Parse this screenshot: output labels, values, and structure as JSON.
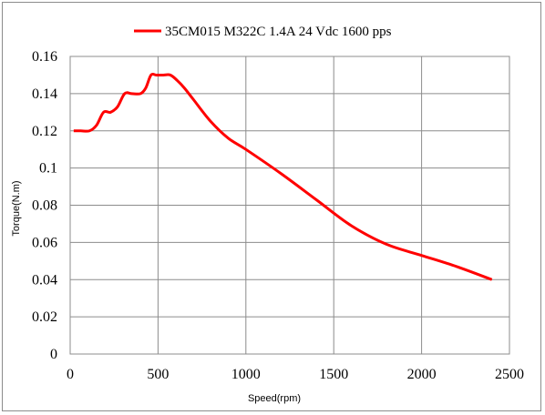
{
  "chart_data": {
    "type": "line",
    "title": "",
    "xlabel": "Speed(rpm)",
    "ylabel": "Torque(N.m)",
    "xlim": [
      0,
      2500
    ],
    "ylim": [
      0,
      0.16
    ],
    "x_ticks": [
      "0",
      "500",
      "1000",
      "1500",
      "2000",
      "2500"
    ],
    "y_ticks": [
      "0",
      "0.02",
      "0.04",
      "0.06",
      "0.08",
      "0.1",
      "0.12",
      "0.14",
      "0.16"
    ],
    "grid": true,
    "legend_position": "top-center",
    "series": [
      {
        "name": "35CM015 M322C 1.4A 24 Vdc  1600 pps",
        "color": "#ff0000",
        "x": [
          20,
          60,
          110,
          150,
          190,
          230,
          270,
          310,
          350,
          400,
          430,
          460,
          490,
          530,
          570,
          610,
          650,
          700,
          800,
          900,
          1000,
          1200,
          1400,
          1600,
          1800,
          2000,
          2200,
          2400
        ],
        "y": [
          0.12,
          0.12,
          0.12,
          0.123,
          0.13,
          0.13,
          0.133,
          0.14,
          0.14,
          0.14,
          0.143,
          0.15,
          0.15,
          0.15,
          0.15,
          0.147,
          0.143,
          0.137,
          0.125,
          0.116,
          0.11,
          0.097,
          0.083,
          0.069,
          0.059,
          0.053,
          0.047,
          0.04
        ]
      }
    ]
  }
}
